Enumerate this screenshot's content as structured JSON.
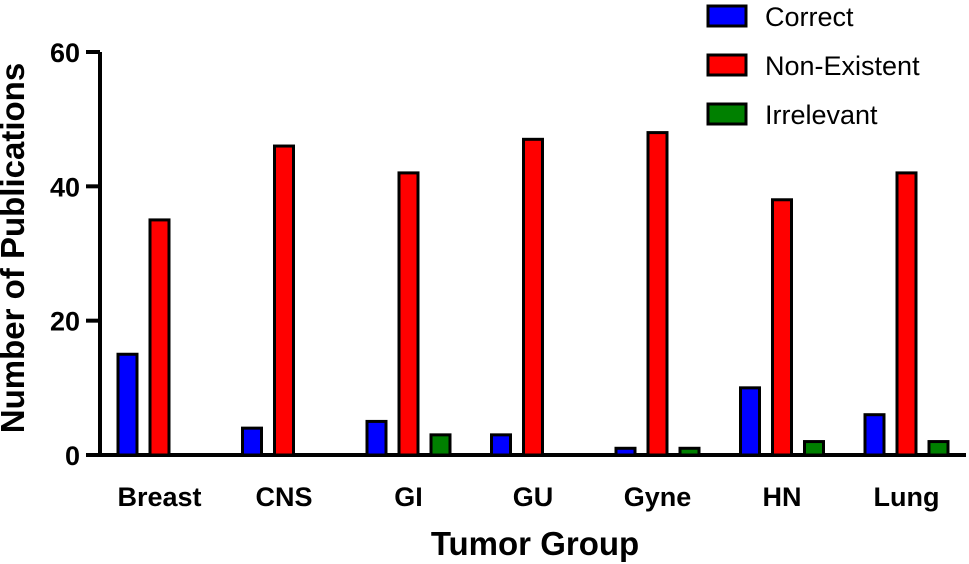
{
  "chart_data": {
    "type": "bar",
    "xlabel": "Tumor Group",
    "ylabel": "Number of Publications",
    "ylim": [
      0,
      60
    ],
    "yticks": [
      "0",
      "20",
      "40",
      "60"
    ],
    "categories": [
      "Breast",
      "CNS",
      "GI",
      "GU",
      "Gyne",
      "HN",
      "Lung"
    ],
    "series": [
      {
        "name": "Correct",
        "color": "#0000ff",
        "values": [
          15,
          4,
          5,
          3,
          1,
          10,
          6
        ]
      },
      {
        "name": "Non-Existent",
        "color": "#ff0000",
        "values": [
          35,
          46,
          42,
          47,
          48,
          38,
          42
        ]
      },
      {
        "name": "Irrelevant",
        "color": "#008000",
        "values": [
          0,
          0,
          3,
          0,
          1,
          2,
          2
        ]
      }
    ],
    "legend_position": "top-right",
    "grid": false
  }
}
